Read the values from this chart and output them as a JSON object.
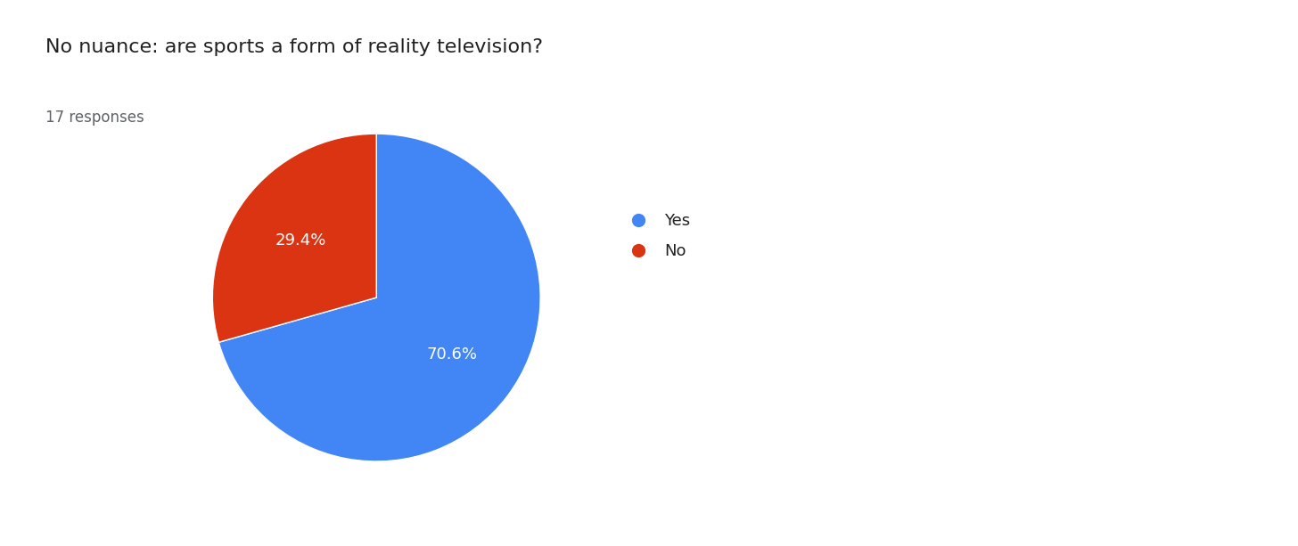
{
  "title": "No nuance: are sports a form of reality television?",
  "subtitle": "17 responses",
  "labels": [
    "Yes",
    "No"
  ],
  "values": [
    70.6,
    29.4
  ],
  "colors": [
    "#4285F4",
    "#DB3412"
  ],
  "pct_labels": [
    "70.6%",
    "29.4%"
  ],
  "title_fontsize": 16,
  "subtitle_fontsize": 12,
  "legend_fontsize": 13,
  "pct_fontsize": 13,
  "background_color": "#ffffff",
  "text_color": "#212121",
  "subtitle_color": "#5f6368",
  "start_angle": 90,
  "counterclock": false
}
